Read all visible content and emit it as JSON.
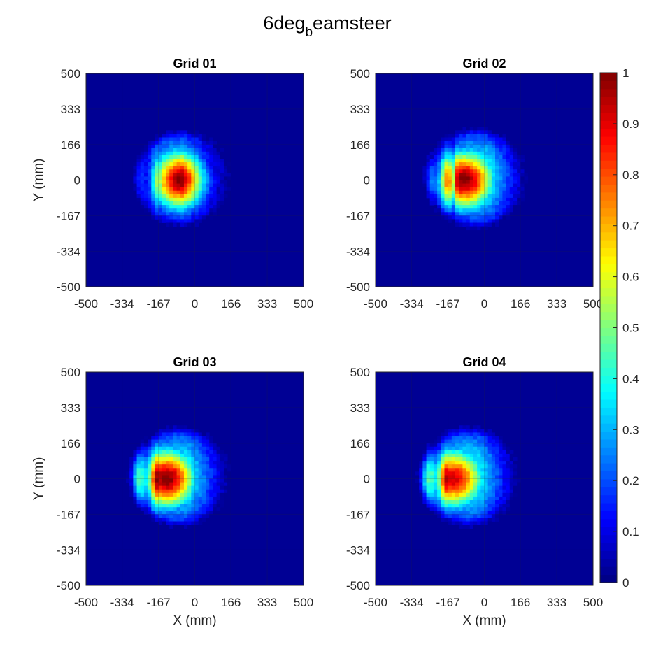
{
  "figure": {
    "title_main": "6deg",
    "title_sub": "b",
    "title_rest": "eamsteer"
  },
  "chart_data": [
    {
      "type": "heatmap",
      "title": "Grid 01",
      "xlabel": "",
      "ylabel": "Y (mm)",
      "xlim": [
        -500,
        500
      ],
      "ylim": [
        -500,
        500
      ],
      "xticks": [
        "-500",
        "-334",
        "-167",
        "0",
        "166",
        "333",
        "500"
      ],
      "yticks": [
        "500",
        "333",
        "166",
        "0",
        "-167",
        "-334",
        "-500"
      ],
      "grid": true,
      "spot": {
        "cx_mm": -60,
        "cy_mm": 10,
        "outer_radius_mm": 230,
        "peak_value": 1.0,
        "peak_center_mm": [
          -60,
          0
        ],
        "shadow_offset_mm": 0,
        "fringes_left": true
      }
    },
    {
      "type": "heatmap",
      "title": "Grid 02",
      "xlabel": "",
      "ylabel": "",
      "xlim": [
        -500,
        500
      ],
      "ylim": [
        -500,
        500
      ],
      "xticks": [
        "-500",
        "-334",
        "-167",
        "0",
        "166",
        "333",
        "500"
      ],
      "yticks": [
        "500",
        "333",
        "166",
        "0",
        "-167",
        "-334",
        "-500"
      ],
      "grid": true,
      "spot": {
        "cx_mm": -40,
        "cy_mm": 10,
        "outer_radius_mm": 240,
        "peak_value": 1.0,
        "peak_center_mm": [
          -90,
          0
        ],
        "shadow_offset_mm": 60,
        "fringes_left": true
      }
    },
    {
      "type": "heatmap",
      "title": "Grid 03",
      "xlabel": "X (mm)",
      "ylabel": "Y (mm)",
      "xlim": [
        -500,
        500
      ],
      "ylim": [
        -500,
        500
      ],
      "xticks": [
        "-500",
        "-334",
        "-167",
        "0",
        "166",
        "333",
        "500"
      ],
      "yticks": [
        "500",
        "333",
        "166",
        "0",
        "-167",
        "-334",
        "-500"
      ],
      "grid": true,
      "spot": {
        "cx_mm": -70,
        "cy_mm": 10,
        "outer_radius_mm": 240,
        "peak_value": 1.0,
        "peak_center_mm": [
          -130,
          0
        ],
        "shadow_offset_mm": 40,
        "fringes_left": true
      }
    },
    {
      "type": "heatmap",
      "title": "Grid 04",
      "xlabel": "X (mm)",
      "ylabel": "",
      "xlim": [
        -500,
        500
      ],
      "ylim": [
        -500,
        500
      ],
      "xticks": [
        "-500",
        "-334",
        "-167",
        "0",
        "166",
        "333",
        "500"
      ],
      "yticks": [
        "500",
        "333",
        "166",
        "0",
        "-167",
        "-334",
        "-500"
      ],
      "grid": true,
      "spot": {
        "cx_mm": -70,
        "cy_mm": 10,
        "outer_radius_mm": 240,
        "peak_value": 0.92,
        "peak_center_mm": [
          -140,
          0
        ],
        "shadow_offset_mm": 40,
        "fringes_left": true
      }
    }
  ],
  "colorbar": {
    "colormap": "jet",
    "range": [
      0,
      1
    ],
    "ticks": [
      "0",
      "0.1",
      "0.2",
      "0.3",
      "0.4",
      "0.5",
      "0.6",
      "0.7",
      "0.8",
      "0.9",
      "1"
    ]
  }
}
